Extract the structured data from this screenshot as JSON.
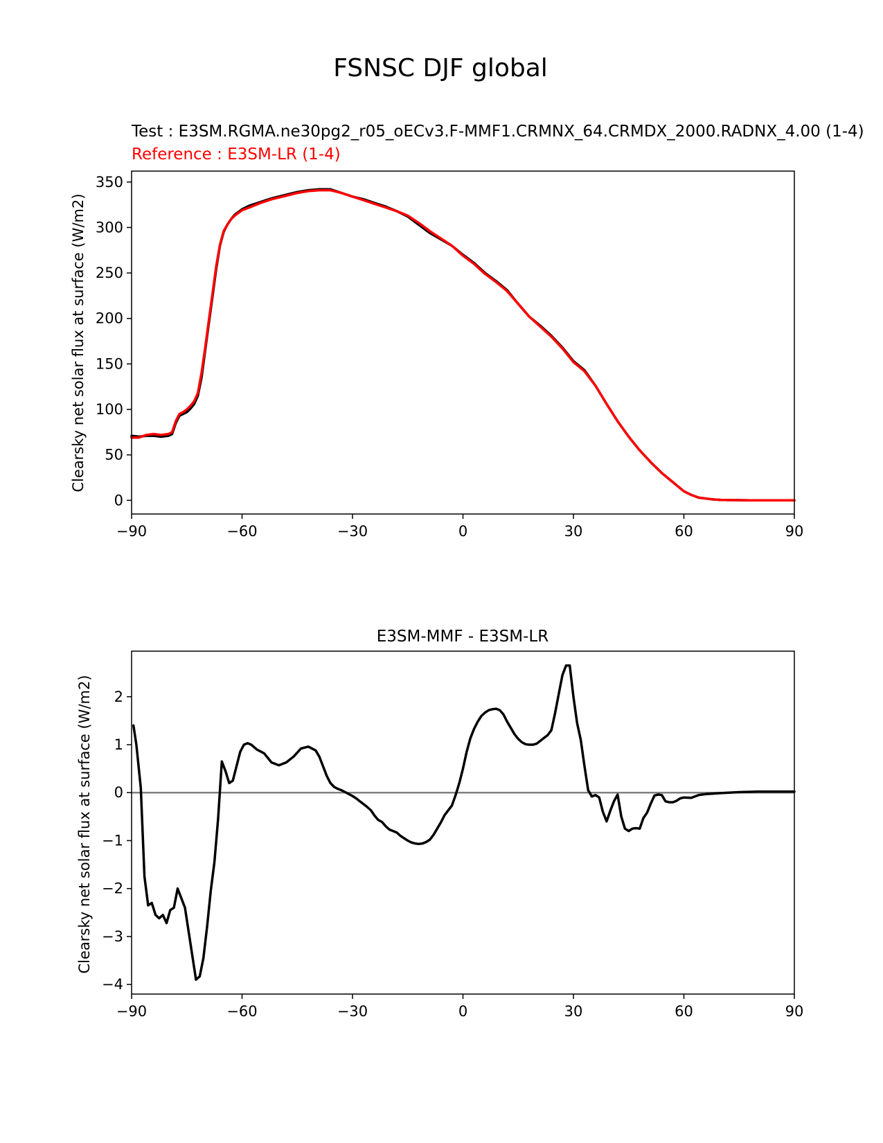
{
  "figure_title": "FSNSC DJF global",
  "chart_data": [
    {
      "type": "line",
      "test_label": "Test : E3SM.RGMA.ne30pg2_r05_oECv3.F-MMF1.CRMNX_64.CRMDX_2000.RADNX_4.00 (1-4)",
      "reference_label": "Reference : E3SM-LR (1-4)",
      "title": "",
      "xlabel": "",
      "ylabel": "Clearsky net solar flux at surface (W/m2)",
      "xlim": [
        -90,
        90
      ],
      "ylim": [
        -15,
        362
      ],
      "xticks": [
        -90,
        -60,
        -30,
        0,
        30,
        60,
        90
      ],
      "xtick_labels": [
        "−90",
        "−60",
        "−30",
        "0",
        "30",
        "60",
        "90"
      ],
      "yticks": [
        0,
        50,
        100,
        150,
        200,
        250,
        300,
        350
      ],
      "ytick_labels": [
        "0",
        "50",
        "100",
        "150",
        "200",
        "250",
        "300",
        "350"
      ],
      "grid": false,
      "series": [
        {
          "name": "Test",
          "color": "#000000",
          "x": [
            -90,
            -88,
            -86,
            -84,
            -82,
            -80,
            -79,
            -78,
            -77,
            -76,
            -75,
            -74,
            -73,
            -72,
            -71,
            -70,
            -69,
            -68,
            -67,
            -66,
            -65,
            -64,
            -63,
            -62,
            -60,
            -58,
            -55,
            -52,
            -48,
            -45,
            -42,
            -39,
            -36,
            -33,
            -30,
            -27,
            -24,
            -21,
            -18,
            -15,
            -12,
            -9,
            -6,
            -3,
            0,
            3,
            6,
            9,
            12,
            15,
            18,
            21,
            24,
            27,
            30,
            33,
            36,
            39,
            42,
            45,
            48,
            51,
            54,
            57,
            60,
            62,
            64,
            66,
            68,
            70,
            72,
            75,
            78,
            82,
            86,
            90
          ],
          "y": [
            71,
            70,
            71,
            71,
            70,
            71,
            73,
            85,
            93,
            95,
            97,
            101,
            106,
            115,
            135,
            165,
            195,
            225,
            255,
            280,
            295,
            303,
            309,
            314,
            320,
            324,
            328,
            332,
            336,
            339,
            341,
            342,
            342,
            338,
            334,
            331,
            327,
            323,
            318,
            312,
            303,
            294,
            287,
            280,
            270,
            261,
            250,
            241,
            231,
            216,
            202,
            192,
            181,
            168,
            153,
            143,
            126,
            106,
            87,
            70,
            55,
            42,
            30,
            20,
            10,
            6,
            3,
            2,
            1,
            0.5,
            0.3,
            0.2,
            0.1,
            0,
            0,
            0
          ]
        },
        {
          "name": "Reference",
          "color": "#ff0000",
          "x": [
            -90,
            -88,
            -86,
            -84,
            -82,
            -80,
            -79,
            -78,
            -77,
            -76,
            -75,
            -74,
            -73,
            -72,
            -71,
            -70,
            -69,
            -68,
            -67,
            -66,
            -65,
            -64,
            -63,
            -62,
            -60,
            -58,
            -55,
            -52,
            -48,
            -45,
            -42,
            -39,
            -36,
            -33,
            -30,
            -27,
            -24,
            -21,
            -18,
            -15,
            -12,
            -9,
            -6,
            -3,
            0,
            3,
            6,
            9,
            12,
            15,
            18,
            21,
            24,
            27,
            30,
            33,
            36,
            39,
            42,
            45,
            48,
            51,
            54,
            57,
            60,
            62,
            64,
            66,
            68,
            70,
            72,
            75,
            78,
            82,
            86,
            90
          ],
          "y": [
            69,
            69,
            72,
            73,
            72,
            73,
            75,
            87,
            95,
            97,
            100,
            104,
            109,
            118,
            140,
            168,
            198,
            228,
            258,
            281,
            296,
            303,
            309,
            313,
            319,
            322,
            327,
            331,
            335,
            338,
            340,
            341,
            341,
            338,
            334,
            330,
            326,
            322,
            318,
            313,
            305,
            296,
            288,
            280,
            269,
            260,
            249,
            240,
            230,
            216,
            202,
            191,
            180,
            167,
            152,
            142,
            126,
            106,
            87,
            70,
            55,
            42,
            30,
            20,
            10,
            6,
            3,
            2,
            1,
            0.5,
            0.3,
            0.2,
            0.1,
            0,
            0,
            0
          ]
        }
      ]
    },
    {
      "type": "line",
      "title": "E3SM-MMF - E3SM-LR",
      "xlabel": "",
      "ylabel": "Clearsky net solar flux at surface (W/m2)",
      "xlim": [
        -90,
        90
      ],
      "ylim": [
        -4.2,
        2.95
      ],
      "xticks": [
        -90,
        -60,
        -30,
        0,
        30,
        60,
        90
      ],
      "xtick_labels": [
        "−90",
        "−60",
        "−30",
        "0",
        "30",
        "60",
        "90"
      ],
      "yticks": [
        -4,
        -3,
        -2,
        -1,
        0,
        1,
        2
      ],
      "ytick_labels": [
        "−4",
        "−3",
        "−2",
        "−1",
        "0",
        "1",
        "2"
      ],
      "grid": false,
      "zero_line_color": "#808080",
      "series": [
        {
          "name": "",
          "color": "#000000",
          "x": [
            -89.5,
            -88.7,
            -87.5,
            -86.5,
            -85.5,
            -84.5,
            -83.5,
            -82.5,
            -81.5,
            -80.5,
            -79.5,
            -78.5,
            -77.5,
            -76.5,
            -75.5,
            -74.5,
            -73.5,
            -72.5,
            -71.5,
            -70.5,
            -69.5,
            -68.5,
            -67.5,
            -66.5,
            -65.5,
            -64.5,
            -63.5,
            -62.5,
            -61.5,
            -60.5,
            -59.5,
            -58.5,
            -57.5,
            -56,
            -54,
            -52,
            -50,
            -48,
            -46,
            -44,
            -42,
            -40,
            -39,
            -38,
            -37,
            -36,
            -35,
            -34,
            -33,
            -32,
            -31,
            -30,
            -29,
            -28,
            -27,
            -26,
            -25,
            -24,
            -23,
            -22,
            -21,
            -20,
            -19,
            -18,
            -17,
            -16,
            -15,
            -14,
            -13,
            -12,
            -11,
            -10,
            -9,
            -8,
            -7,
            -6,
            -5,
            -4,
            -3,
            -2,
            -1,
            0,
            1,
            2,
            3,
            4,
            5,
            6,
            7,
            8,
            9,
            10,
            11,
            12,
            13,
            14,
            15,
            16,
            17,
            18,
            19,
            20,
            21,
            22,
            23,
            24,
            25,
            26,
            27,
            28,
            29,
            30,
            31,
            32,
            33,
            34,
            35,
            36,
            37,
            38,
            39,
            40,
            41,
            42,
            43,
            44,
            45,
            46,
            47,
            48,
            49,
            50,
            51,
            52,
            53,
            54,
            55,
            56,
            57,
            58,
            59,
            60,
            62,
            64,
            66,
            68,
            70,
            75,
            80,
            85,
            90
          ],
          "y": [
            1.4,
            1.0,
            0.1,
            -1.75,
            -2.35,
            -2.3,
            -2.55,
            -2.62,
            -2.55,
            -2.72,
            -2.45,
            -2.4,
            -2.0,
            -2.2,
            -2.4,
            -2.9,
            -3.4,
            -3.9,
            -3.83,
            -3.45,
            -2.8,
            -2.05,
            -1.45,
            -0.55,
            0.65,
            0.45,
            0.2,
            0.25,
            0.55,
            0.85,
            1.0,
            1.03,
            1.0,
            0.9,
            0.82,
            0.63,
            0.57,
            0.63,
            0.75,
            0.92,
            0.96,
            0.88,
            0.75,
            0.55,
            0.35,
            0.2,
            0.12,
            0.08,
            0.05,
            0.01,
            -0.03,
            -0.07,
            -0.12,
            -0.18,
            -0.24,
            -0.3,
            -0.37,
            -0.48,
            -0.57,
            -0.61,
            -0.7,
            -0.77,
            -0.8,
            -0.83,
            -0.9,
            -0.95,
            -1.0,
            -1.04,
            -1.06,
            -1.07,
            -1.06,
            -1.03,
            -0.98,
            -0.88,
            -0.75,
            -0.62,
            -0.47,
            -0.37,
            -0.27,
            -0.05,
            0.2,
            0.5,
            0.85,
            1.13,
            1.33,
            1.48,
            1.6,
            1.67,
            1.72,
            1.74,
            1.75,
            1.72,
            1.63,
            1.48,
            1.35,
            1.22,
            1.12,
            1.05,
            1.01,
            1.0,
            1.0,
            1.02,
            1.08,
            1.14,
            1.2,
            1.3,
            1.65,
            2.05,
            2.45,
            2.65,
            2.65,
            2.0,
            1.45,
            1.1,
            0.55,
            0.05,
            -0.08,
            -0.05,
            -0.1,
            -0.4,
            -0.6,
            -0.38,
            -0.18,
            -0.04,
            -0.5,
            -0.75,
            -0.8,
            -0.75,
            -0.74,
            -0.75,
            -0.53,
            -0.42,
            -0.23,
            -0.06,
            -0.04,
            -0.05,
            -0.18,
            -0.2,
            -0.2,
            -0.17,
            -0.12,
            -0.1,
            -0.11,
            -0.05,
            -0.03,
            -0.02,
            -0.01,
            0.01,
            0.02,
            0.02,
            0.02
          ]
        }
      ]
    }
  ]
}
